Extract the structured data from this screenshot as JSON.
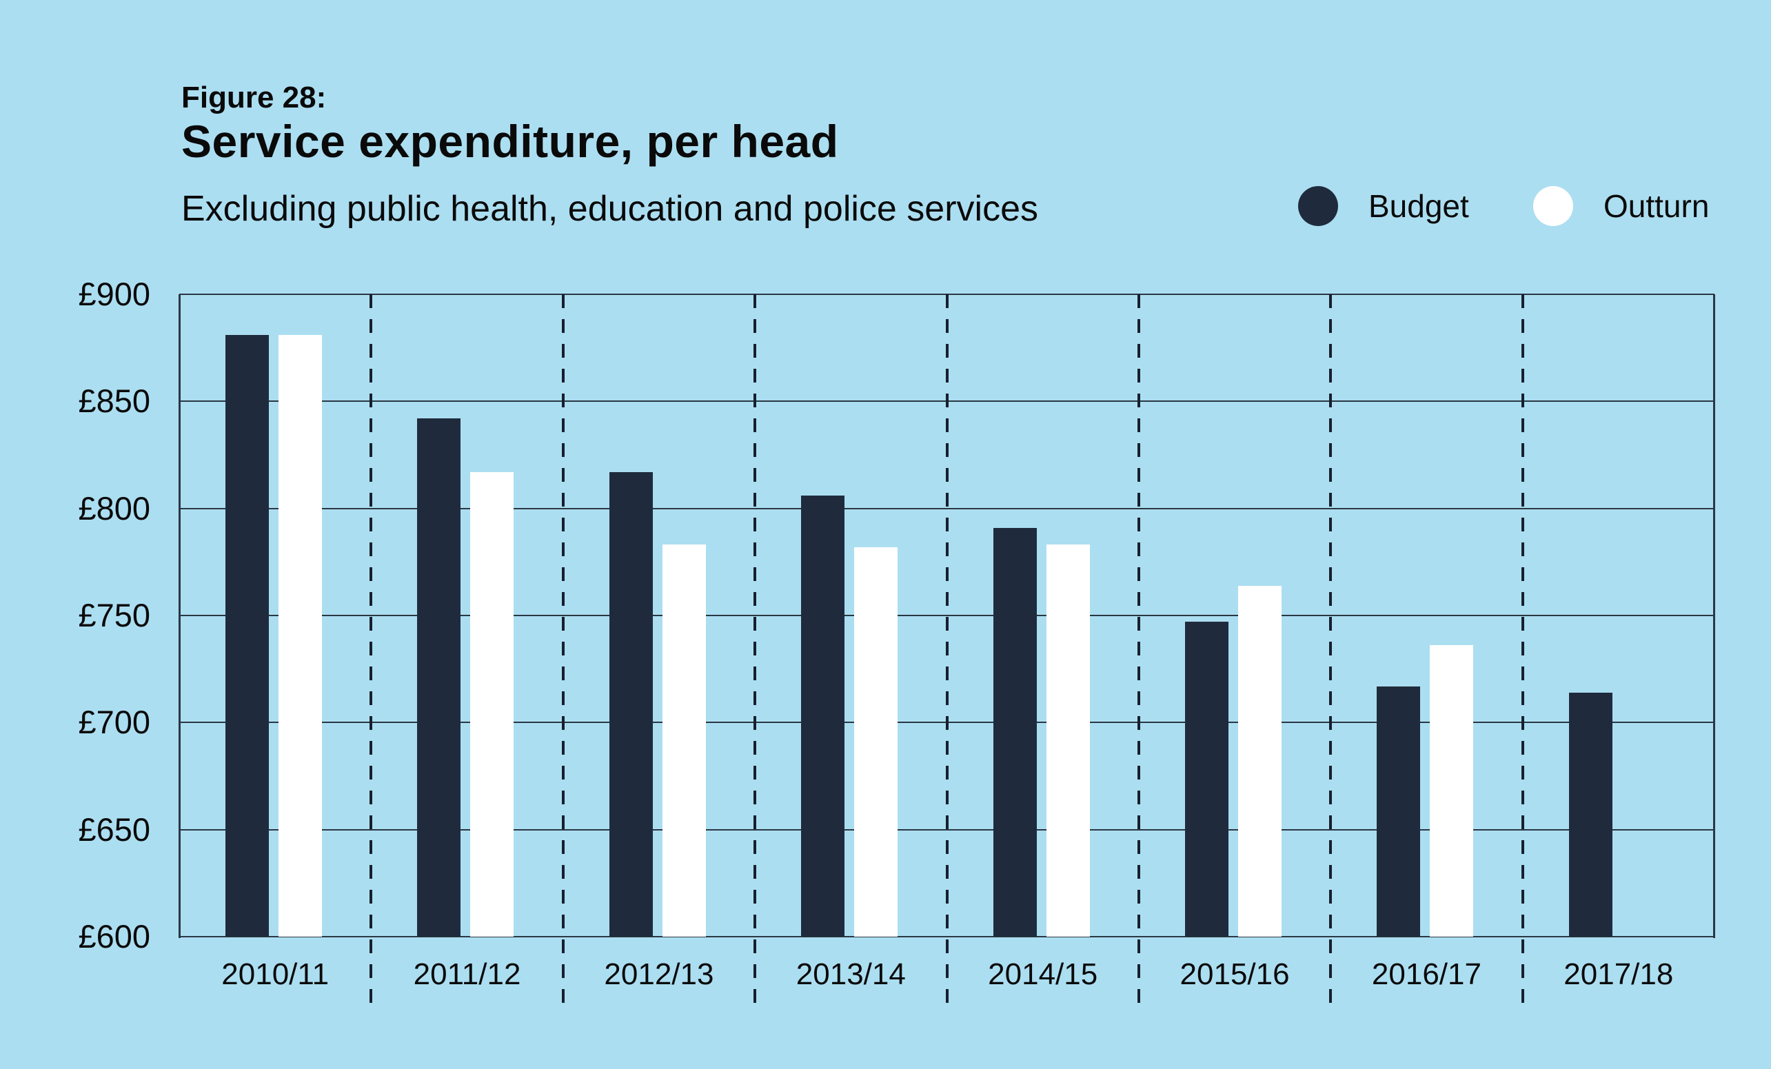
{
  "figure_label": "Figure 28:",
  "title": "Service expenditure, per head",
  "subtitle": "Excluding public health, education and police services",
  "colors": {
    "background": "#ACDEF1",
    "budget": "#1F2B3C",
    "outturn": "#FFFFFF",
    "gridline": "#2A3744",
    "separator": "#16202E",
    "text": "#0A0A0A"
  },
  "legend": {
    "position": "top-right",
    "items": [
      {
        "label": "Budget",
        "swatch": "circle",
        "color": "#1F2B3C"
      },
      {
        "label": "Outturn",
        "swatch": "circle",
        "color": "#FFFFFF"
      }
    ]
  },
  "chart_data": {
    "type": "bar",
    "categories": [
      "2010/11",
      "2011/12",
      "2012/13",
      "2013/14",
      "2014/15",
      "2015/16",
      "2016/17",
      "2017/18"
    ],
    "series": [
      {
        "name": "Budget",
        "color": "#1F2B3C",
        "values": [
          881,
          842,
          817,
          806,
          791,
          747,
          717,
          714
        ]
      },
      {
        "name": "Outturn",
        "color": "#FFFFFF",
        "values": [
          881,
          817,
          783,
          782,
          783,
          764,
          736,
          null
        ]
      }
    ],
    "title": "Service expenditure, per head",
    "subtitle": "Excluding public health, education and police services",
    "xlabel": "",
    "ylabel": "",
    "currency_prefix": "£",
    "ylim": [
      600,
      900
    ],
    "ytick_step": 50,
    "y_tick_labels": [
      "£900",
      "£850",
      "£800",
      "£750",
      "£700",
      "£650",
      "£600"
    ],
    "grid": {
      "horizontal": "solid",
      "vertical": "dashed-group-separators"
    },
    "legend_position": "top-right"
  }
}
